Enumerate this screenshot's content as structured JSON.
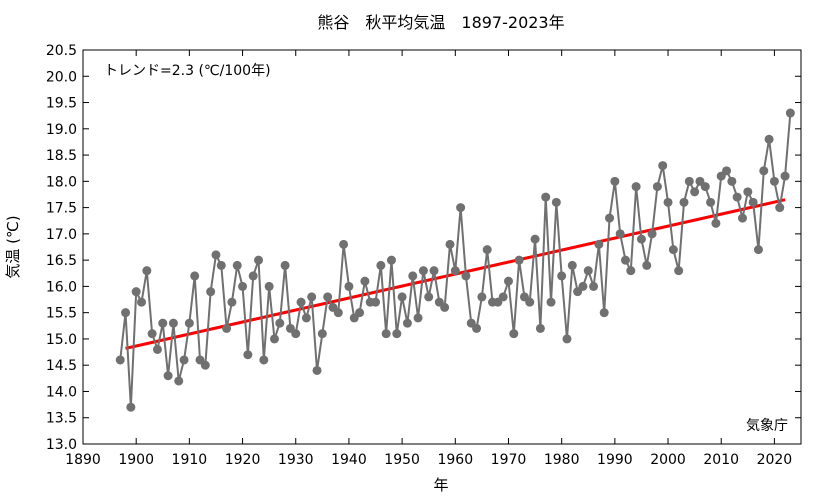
{
  "chart_data": {
    "type": "line",
    "title": "熊谷　秋平均気温　1897-2023年",
    "xlabel": "年",
    "ylabel": "気温 (℃)",
    "xlim": [
      1890,
      2025
    ],
    "ylim": [
      13.0,
      20.5
    ],
    "xticks": [
      "1890",
      "1900",
      "1910",
      "1920",
      "1930",
      "1940",
      "1950",
      "1960",
      "1970",
      "1980",
      "1990",
      "2000",
      "2010",
      "2020"
    ],
    "yticks": [
      "13.0",
      "13.5",
      "14.0",
      "14.5",
      "15.0",
      "15.5",
      "16.0",
      "16.5",
      "17.0",
      "17.5",
      "18.0",
      "18.5",
      "19.0",
      "19.5",
      "20.0",
      "20.5"
    ],
    "grid": false,
    "trend_label": "トレンド=2.3 (℃/100年)",
    "source_label": "気象庁",
    "colors": {
      "series": "#707070",
      "trend": "#ff0000"
    },
    "series": [
      {
        "x": [
          1897,
          1898,
          1899,
          1900,
          1901,
          1902,
          1903,
          1904,
          1905,
          1906,
          1907,
          1908,
          1909,
          1910,
          1911,
          1912,
          1913,
          1914,
          1915,
          1916,
          1917,
          1918,
          1919,
          1920,
          1921,
          1922,
          1923,
          1924,
          1925,
          1926,
          1927,
          1928,
          1929,
          1930,
          1931,
          1932,
          1933,
          1934,
          1935,
          1936,
          1937,
          1938,
          1939,
          1940,
          1941,
          1942,
          1943,
          1944,
          1945,
          1946,
          1947,
          1948,
          1949,
          1950,
          1951,
          1952,
          1953,
          1954,
          1955,
          1956,
          1957,
          1958,
          1959,
          1960,
          1961,
          1962,
          1963,
          1964,
          1965,
          1966,
          1967,
          1968,
          1969,
          1970,
          1971,
          1972,
          1973,
          1974,
          1975,
          1976,
          1977,
          1978,
          1979,
          1980,
          1981,
          1982,
          1983,
          1984,
          1985,
          1986,
          1987,
          1988,
          1989,
          1990,
          1991,
          1992,
          1993,
          1994,
          1995,
          1996,
          1997,
          1998,
          1999,
          2000,
          2001,
          2002,
          2003,
          2004,
          2005,
          2006,
          2007,
          2008,
          2009,
          2010,
          2011,
          2012,
          2013,
          2014,
          2015,
          2016,
          2017,
          2018,
          2019,
          2020,
          2021,
          2022,
          2023
        ],
        "values": [
          14.6,
          15.5,
          13.7,
          15.9,
          15.7,
          16.3,
          15.1,
          14.8,
          15.3,
          14.3,
          15.3,
          14.2,
          14.6,
          15.3,
          16.2,
          14.6,
          14.5,
          15.9,
          16.6,
          16.4,
          15.2,
          15.7,
          16.4,
          16.0,
          14.7,
          16.2,
          16.5,
          14.6,
          16.0,
          15.0,
          15.3,
          16.4,
          15.2,
          15.1,
          15.7,
          15.4,
          15.8,
          14.4,
          15.1,
          15.8,
          15.6,
          15.5,
          16.8,
          16.0,
          15.4,
          15.5,
          16.1,
          15.7,
          15.7,
          16.4,
          15.1,
          16.5,
          15.1,
          15.8,
          15.3,
          16.2,
          15.4,
          16.3,
          15.8,
          16.3,
          15.7,
          15.6,
          16.8,
          16.3,
          17.5,
          16.2,
          15.3,
          15.2,
          15.8,
          16.7,
          15.7,
          15.7,
          15.8,
          16.1,
          15.1,
          16.5,
          15.8,
          15.7,
          16.9,
          15.2,
          17.7,
          15.7,
          17.6,
          16.2,
          15.0,
          16.4,
          15.9,
          16.0,
          16.3,
          16.0,
          16.8,
          15.5,
          17.3,
          18.0,
          17.0,
          16.5,
          16.3,
          17.9,
          16.9,
          16.4,
          17.0,
          17.9,
          18.3,
          17.6,
          16.7,
          16.3,
          17.6,
          18.0,
          17.8,
          18.0,
          17.9,
          17.6,
          17.2,
          18.1,
          18.2,
          18.0,
          17.7,
          17.3,
          17.8,
          17.6,
          16.7,
          18.2,
          18.8,
          18.0,
          17.5,
          18.1,
          19.3
        ]
      }
    ],
    "trend": {
      "x": [
        1898,
        2022
      ],
      "y": [
        14.82,
        17.65
      ]
    }
  }
}
